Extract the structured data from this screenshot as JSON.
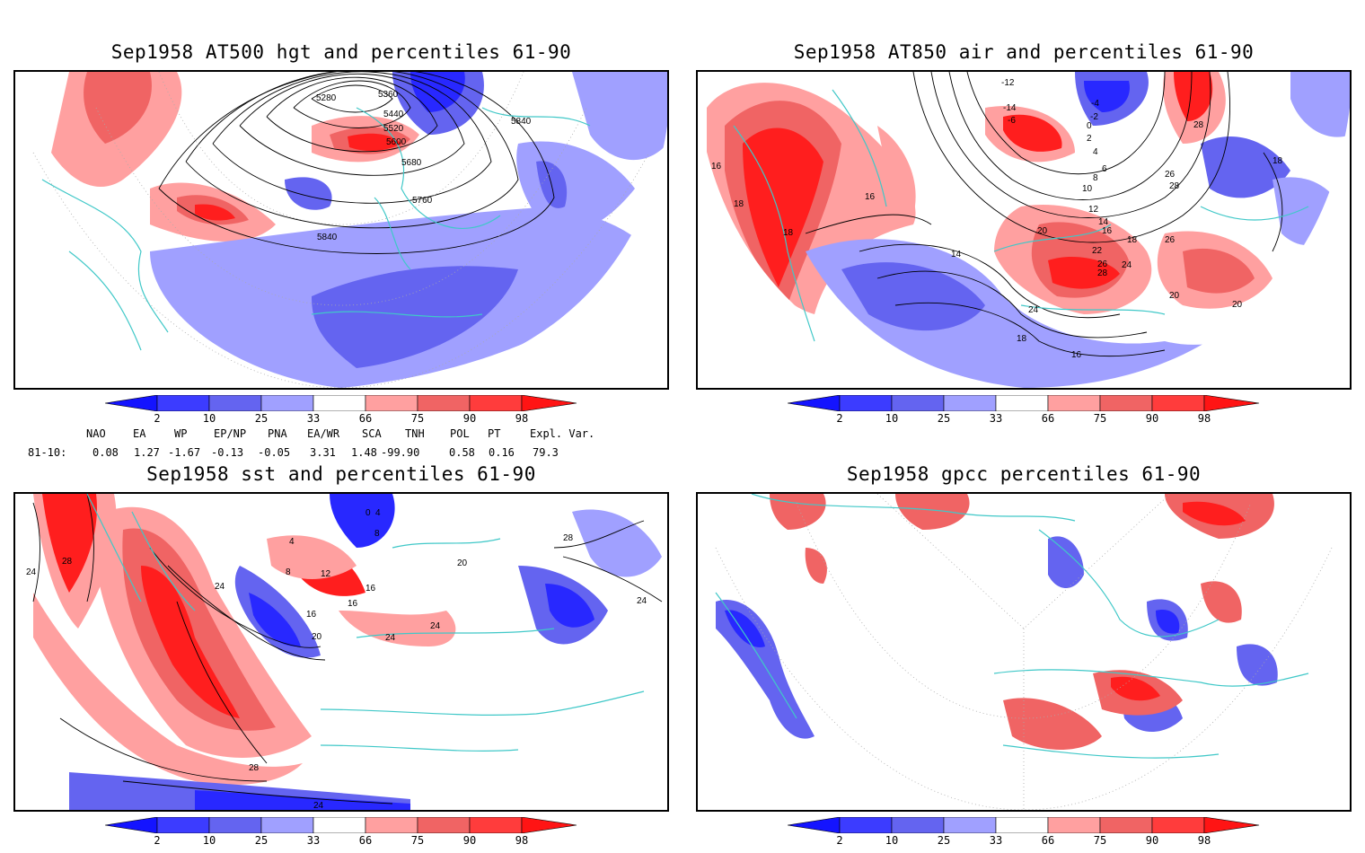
{
  "panels": [
    {
      "title": "Sep1958 AT500 hgt and percentiles 61-90",
      "contour_labels": [
        "5280",
        "5360",
        "5440",
        "5520",
        "5600",
        "5680",
        "5760",
        "5840",
        "5840"
      ]
    },
    {
      "title": "Sep1958 AT850 air and percentiles 61-90",
      "contour_labels": [
        "-12",
        "-14",
        "-6",
        "-4",
        "-2",
        "0",
        "2",
        "4",
        "6",
        "8",
        "10",
        "12",
        "14",
        "16",
        "18",
        "20",
        "22",
        "24",
        "26",
        "28",
        "14",
        "16",
        "18",
        "18",
        "16",
        "18",
        "20",
        "24",
        "26",
        "28",
        "26",
        "28",
        "18",
        "16",
        "20"
      ]
    },
    {
      "title": "Sep1958 sst and percentiles 61-90",
      "contour_labels": [
        "24",
        "28",
        "24",
        "4",
        "8",
        "12",
        "16",
        "16",
        "20",
        "24",
        "24",
        "28",
        "28",
        "16",
        "24",
        "0",
        "4",
        "8",
        "20",
        "24"
      ]
    },
    {
      "title": "Sep1958 gpcc percentiles 61-90",
      "contour_labels": []
    }
  ],
  "colorbar": {
    "ticks": [
      "2",
      "10",
      "25",
      "33",
      "66",
      "75",
      "90",
      "98"
    ],
    "colors": [
      "#1414ff",
      "#3c3cff",
      "#6464f0",
      "#a0a0ff",
      "#ffffff",
      "#ffa0a0",
      "#f06464",
      "#ff3c3c",
      "#ff1414"
    ]
  },
  "indices": {
    "names": [
      "NAO",
      "EA",
      "WP",
      "EP/NP",
      "PNA",
      "EA/WR",
      "SCA",
      "TNH",
      "POL",
      "PT",
      "Expl. Var."
    ],
    "period": "81-10:",
    "values": [
      "0.08",
      "1.27",
      "-1.67",
      "-0.13",
      "-0.05",
      "3.31",
      "1.48",
      "-99.90",
      "0.58",
      "0.16",
      "79.3"
    ]
  },
  "colors": {
    "coast": "#40c8c8",
    "blue_light": "#a0a0ff",
    "blue_mid": "#6464f0",
    "blue_dark": "#2828ff",
    "red_light": "#ffa0a0",
    "red_mid": "#f06464",
    "red_dark": "#ff1e1e"
  }
}
